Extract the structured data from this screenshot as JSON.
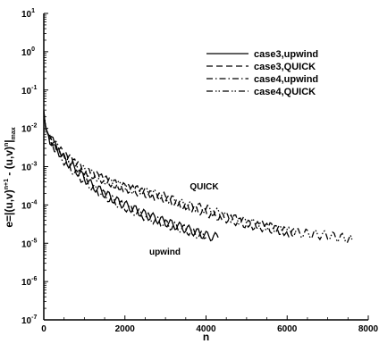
{
  "chart_data": {
    "type": "line",
    "xlabel": "n",
    "ylabel": "e=|(u,v)^{n+1} - (u,v)^{n}|_{max}",
    "ylabel_parts": {
      "lhs": "e=",
      "base1": "(u,v)",
      "sup1": "n+1",
      "mid": " - (u,v)",
      "sup2": "n",
      "sub": "max"
    },
    "xlim": [
      0,
      8000
    ],
    "ylim_log10": [
      -7,
      1
    ],
    "yscale": "log",
    "x_ticks": [
      "0",
      "2000",
      "4000",
      "6000",
      "8000"
    ],
    "x_tick_values": [
      0,
      2000,
      4000,
      6000,
      8000
    ],
    "y_ticks": [
      {
        "base": "10",
        "exp": "1",
        "value": 1
      },
      {
        "base": "10",
        "exp": "0",
        "value": 0
      },
      {
        "base": "10",
        "exp": "-1",
        "value": -1
      },
      {
        "base": "10",
        "exp": "-2",
        "value": -2
      },
      {
        "base": "10",
        "exp": "-3",
        "value": -3
      },
      {
        "base": "10",
        "exp": "-4",
        "value": -4
      },
      {
        "base": "10",
        "exp": "-5",
        "value": -5
      },
      {
        "base": "10",
        "exp": "-6",
        "value": -6
      },
      {
        "base": "10",
        "exp": "-7",
        "value": -7
      }
    ],
    "legend_position": "top-right",
    "grid": false,
    "series": [
      {
        "name": "case3,upwind",
        "dash": "solid",
        "x": [
          0,
          50,
          150,
          300,
          500,
          800,
          1000,
          1200,
          1500,
          1800,
          2000,
          2500,
          3000,
          3500,
          4000,
          4300
        ],
        "log10_y": [
          -1.6,
          -2.0,
          -2.3,
          -2.5,
          -2.8,
          -3.1,
          -3.3,
          -3.5,
          -3.7,
          -3.9,
          -4.0,
          -4.25,
          -4.45,
          -4.62,
          -4.8,
          -4.85
        ]
      },
      {
        "name": "case3,QUICK",
        "dash": "dashed",
        "x": [
          0,
          50,
          150,
          300,
          500,
          800,
          1000,
          1500,
          2000,
          2500,
          3000,
          3500,
          4000,
          4500,
          5000,
          5500,
          6000,
          6200
        ],
        "log10_y": [
          -1.6,
          -2.0,
          -2.25,
          -2.45,
          -2.7,
          -2.9,
          -3.1,
          -3.35,
          -3.55,
          -3.7,
          -3.85,
          -4.05,
          -4.2,
          -4.35,
          -4.5,
          -4.6,
          -4.7,
          -4.75
        ]
      },
      {
        "name": "case4,upwind",
        "dash": "dashdot",
        "x": [
          0,
          50,
          150,
          300,
          500,
          800,
          1000,
          1200,
          1500,
          1800,
          2000,
          2500,
          3000,
          3500,
          4000
        ],
        "log10_y": [
          -1.55,
          -2.0,
          -2.3,
          -2.55,
          -2.85,
          -3.2,
          -3.35,
          -3.55,
          -3.75,
          -3.95,
          -4.05,
          -4.3,
          -4.5,
          -4.65,
          -4.85
        ]
      },
      {
        "name": "case4,QUICK",
        "dash": "dashdotdot",
        "x": [
          0,
          50,
          150,
          300,
          500,
          800,
          1000,
          1500,
          2000,
          2500,
          3000,
          3500,
          4000,
          4500,
          5000,
          5500,
          6000,
          6500,
          7000,
          7600
        ],
        "log10_y": [
          -1.55,
          -2.0,
          -2.25,
          -2.45,
          -2.7,
          -2.95,
          -3.1,
          -3.35,
          -3.55,
          -3.65,
          -3.8,
          -4.0,
          -4.1,
          -4.3,
          -4.45,
          -4.55,
          -4.7,
          -4.75,
          -4.8,
          -4.9
        ]
      }
    ],
    "annotations": [
      {
        "text": "QUICK",
        "x": 3600,
        "log10_y": -3.6
      },
      {
        "text": "upwind",
        "x": 2600,
        "log10_y": -5.3
      }
    ]
  }
}
